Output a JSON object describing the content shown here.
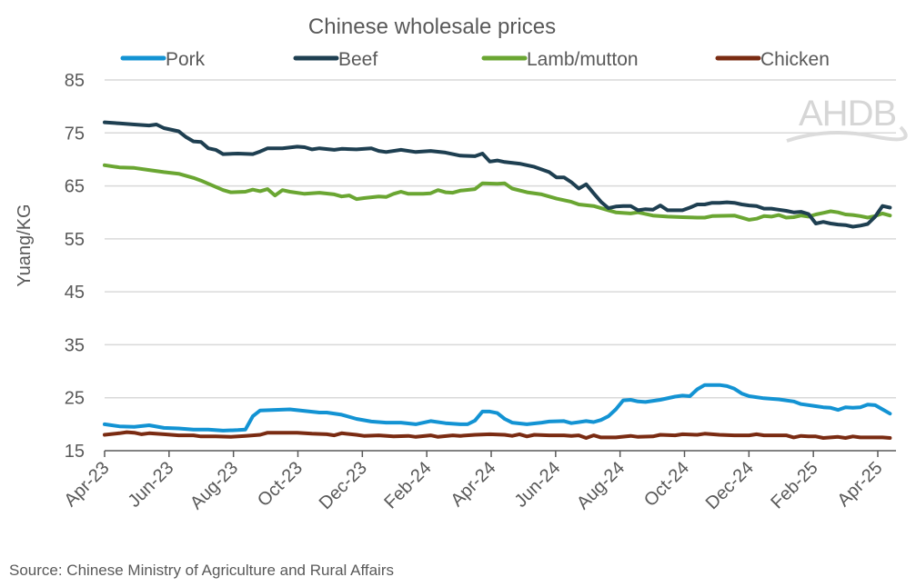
{
  "chart_data": {
    "type": "line",
    "title": "Chinese wholesale prices",
    "ylabel": "Yuang/KG",
    "xlabel": "",
    "ylim": [
      15,
      85
    ],
    "yticks": [
      15,
      25,
      35,
      45,
      55,
      65,
      75,
      85
    ],
    "grid": true,
    "legend_position": "top",
    "x_unit": "weeks since Apr-23",
    "x_range": [
      0,
      106.5
    ],
    "xtick_labels": [
      "Apr-23",
      "Jun-23",
      "Aug-23",
      "Oct-23",
      "Dec-23",
      "Feb-24",
      "Apr-24",
      "Jun-24",
      "Aug-24",
      "Oct-24",
      "Dec-24",
      "Feb-25",
      "Apr-25"
    ],
    "xtick_months_from_start": [
      0,
      2,
      4,
      6,
      8,
      10,
      12,
      14,
      16,
      18,
      20,
      22,
      24
    ],
    "series": [
      {
        "name": "Pork",
        "color": "#1393d3",
        "points": [
          [
            0,
            20.0
          ],
          [
            2,
            19.6
          ],
          [
            4,
            19.5
          ],
          [
            6,
            19.8
          ],
          [
            8,
            19.3
          ],
          [
            10,
            19.2
          ],
          [
            12,
            19.0
          ],
          [
            14,
            19.0
          ],
          [
            16,
            18.8
          ],
          [
            18,
            18.9
          ],
          [
            19,
            19.0
          ],
          [
            20,
            21.5
          ],
          [
            21,
            22.6
          ],
          [
            23,
            22.7
          ],
          [
            25,
            22.8
          ],
          [
            27,
            22.5
          ],
          [
            29,
            22.2
          ],
          [
            30,
            22.2
          ],
          [
            32,
            21.8
          ],
          [
            34,
            21.0
          ],
          [
            36,
            20.5
          ],
          [
            38,
            20.3
          ],
          [
            40,
            20.3
          ],
          [
            42,
            20.0
          ],
          [
            44,
            20.6
          ],
          [
            46,
            20.2
          ],
          [
            48,
            20.0
          ],
          [
            49,
            20.0
          ],
          [
            50,
            20.7
          ],
          [
            51,
            22.4
          ],
          [
            52,
            22.4
          ],
          [
            53,
            22.1
          ],
          [
            54,
            21.0
          ],
          [
            55,
            20.3
          ],
          [
            57,
            20.0
          ],
          [
            59,
            20.3
          ],
          [
            60,
            20.5
          ],
          [
            62,
            20.6
          ],
          [
            63,
            20.2
          ],
          [
            65,
            20.6
          ],
          [
            66,
            20.4
          ],
          [
            67,
            20.8
          ],
          [
            68,
            21.5
          ],
          [
            69,
            22.8
          ],
          [
            70,
            24.5
          ],
          [
            71,
            24.6
          ],
          [
            72,
            24.3
          ],
          [
            73,
            24.2
          ],
          [
            75,
            24.6
          ],
          [
            77,
            25.2
          ],
          [
            78,
            25.4
          ],
          [
            79,
            25.3
          ],
          [
            80,
            26.6
          ],
          [
            81,
            27.4
          ],
          [
            83,
            27.4
          ],
          [
            84,
            27.2
          ],
          [
            85,
            26.7
          ],
          [
            86,
            25.8
          ],
          [
            87,
            25.3
          ],
          [
            89,
            24.9
          ],
          [
            91,
            24.7
          ],
          [
            93,
            24.3
          ],
          [
            94,
            23.8
          ],
          [
            96,
            23.4
          ],
          [
            97,
            23.2
          ],
          [
            98,
            23.1
          ],
          [
            99,
            22.7
          ],
          [
            100,
            23.2
          ],
          [
            101,
            23.1
          ],
          [
            102,
            23.2
          ],
          [
            103,
            23.7
          ],
          [
            104,
            23.6
          ],
          [
            105,
            22.8
          ],
          [
            106,
            22.0
          ]
        ]
      },
      {
        "name": "Beef",
        "color": "#1e3f51",
        "points": [
          [
            0,
            77.0
          ],
          [
            2,
            76.8
          ],
          [
            4,
            76.6
          ],
          [
            6,
            76.4
          ],
          [
            7,
            76.6
          ],
          [
            8,
            75.9
          ],
          [
            10,
            75.3
          ],
          [
            11,
            74.2
          ],
          [
            12,
            73.4
          ],
          [
            13,
            73.3
          ],
          [
            14,
            72.1
          ],
          [
            15,
            71.8
          ],
          [
            16,
            71.0
          ],
          [
            18,
            71.1
          ],
          [
            20,
            71.0
          ],
          [
            21,
            71.5
          ],
          [
            22,
            72.1
          ],
          [
            24,
            72.1
          ],
          [
            26,
            72.4
          ],
          [
            27,
            72.3
          ],
          [
            28,
            71.9
          ],
          [
            29,
            72.1
          ],
          [
            31,
            71.8
          ],
          [
            32,
            72.0
          ],
          [
            34,
            71.9
          ],
          [
            36,
            72.1
          ],
          [
            37,
            71.6
          ],
          [
            38,
            71.4
          ],
          [
            40,
            71.8
          ],
          [
            42,
            71.4
          ],
          [
            44,
            71.6
          ],
          [
            46,
            71.3
          ],
          [
            48,
            70.7
          ],
          [
            50,
            70.6
          ],
          [
            51,
            71.1
          ],
          [
            52,
            69.6
          ],
          [
            53,
            69.8
          ],
          [
            54,
            69.5
          ],
          [
            56,
            69.2
          ],
          [
            58,
            68.6
          ],
          [
            60,
            67.6
          ],
          [
            61,
            66.6
          ],
          [
            62,
            66.6
          ],
          [
            63,
            65.7
          ],
          [
            64,
            64.5
          ],
          [
            65,
            65.3
          ],
          [
            66,
            63.6
          ],
          [
            67,
            62.0
          ],
          [
            68,
            60.8
          ],
          [
            69,
            61.1
          ],
          [
            70,
            61.2
          ],
          [
            71,
            61.2
          ],
          [
            72,
            60.4
          ],
          [
            73,
            60.6
          ],
          [
            74,
            60.5
          ],
          [
            75,
            61.3
          ],
          [
            76,
            60.4
          ],
          [
            77,
            60.4
          ],
          [
            78,
            60.4
          ],
          [
            79,
            60.9
          ],
          [
            80,
            61.5
          ],
          [
            81,
            61.5
          ],
          [
            82,
            61.8
          ],
          [
            83,
            61.8
          ],
          [
            84,
            61.9
          ],
          [
            85,
            61.8
          ],
          [
            86,
            61.5
          ],
          [
            87,
            61.3
          ],
          [
            88,
            61.2
          ],
          [
            89,
            60.7
          ],
          [
            90,
            60.7
          ],
          [
            91,
            60.5
          ],
          [
            92,
            60.3
          ],
          [
            93,
            60.0
          ],
          [
            94,
            60.1
          ],
          [
            95,
            59.7
          ],
          [
            96,
            57.9
          ],
          [
            97,
            58.2
          ],
          [
            98,
            57.9
          ],
          [
            99,
            57.7
          ],
          [
            100,
            57.6
          ],
          [
            101,
            57.3
          ],
          [
            102,
            57.5
          ],
          [
            103,
            57.8
          ],
          [
            104,
            59.2
          ],
          [
            105,
            61.2
          ],
          [
            106,
            60.9
          ]
        ]
      },
      {
        "name": "Lamb/mutton",
        "color": "#6aa632",
        "points": [
          [
            0,
            68.9
          ],
          [
            2,
            68.5
          ],
          [
            4,
            68.4
          ],
          [
            6,
            68.0
          ],
          [
            8,
            67.6
          ],
          [
            10,
            67.3
          ],
          [
            12,
            66.5
          ],
          [
            13,
            66.0
          ],
          [
            14,
            65.4
          ],
          [
            16,
            64.2
          ],
          [
            17,
            63.8
          ],
          [
            19,
            63.9
          ],
          [
            20,
            64.3
          ],
          [
            21,
            64.0
          ],
          [
            22,
            64.4
          ],
          [
            23,
            63.2
          ],
          [
            24,
            64.2
          ],
          [
            25,
            63.9
          ],
          [
            27,
            63.5
          ],
          [
            29,
            63.7
          ],
          [
            31,
            63.4
          ],
          [
            32,
            63.0
          ],
          [
            33,
            63.2
          ],
          [
            34,
            62.5
          ],
          [
            35,
            62.7
          ],
          [
            37,
            63.0
          ],
          [
            38,
            62.9
          ],
          [
            39,
            63.5
          ],
          [
            40,
            63.9
          ],
          [
            41,
            63.5
          ],
          [
            43,
            63.5
          ],
          [
            44,
            63.6
          ],
          [
            45,
            64.2
          ],
          [
            46,
            63.8
          ],
          [
            47,
            63.7
          ],
          [
            48,
            64.1
          ],
          [
            50,
            64.4
          ],
          [
            51,
            65.5
          ],
          [
            53,
            65.4
          ],
          [
            54,
            65.5
          ],
          [
            55,
            64.5
          ],
          [
            57,
            63.8
          ],
          [
            59,
            63.4
          ],
          [
            61,
            62.6
          ],
          [
            63,
            62.0
          ],
          [
            64,
            61.5
          ],
          [
            66,
            61.2
          ],
          [
            68,
            60.4
          ],
          [
            69,
            60.0
          ],
          [
            71,
            59.8
          ],
          [
            72,
            60.0
          ],
          [
            74,
            59.4
          ],
          [
            76,
            59.2
          ],
          [
            78,
            59.1
          ],
          [
            80,
            59.0
          ],
          [
            81,
            59.0
          ],
          [
            82,
            59.3
          ],
          [
            85,
            59.4
          ],
          [
            87,
            58.6
          ],
          [
            88,
            58.8
          ],
          [
            89,
            59.3
          ],
          [
            90,
            59.2
          ],
          [
            91,
            59.5
          ],
          [
            92,
            59.0
          ],
          [
            93,
            59.1
          ],
          [
            94,
            59.4
          ],
          [
            95,
            59.2
          ],
          [
            96,
            59.6
          ],
          [
            97,
            59.9
          ],
          [
            98,
            60.2
          ],
          [
            99,
            60.0
          ],
          [
            100,
            59.6
          ],
          [
            101,
            59.5
          ],
          [
            102,
            59.3
          ],
          [
            103,
            59.0
          ],
          [
            104,
            59.3
          ],
          [
            105,
            59.8
          ],
          [
            106,
            59.4
          ]
        ]
      },
      {
        "name": "Chicken",
        "color": "#7a2b12",
        "points": [
          [
            0,
            18.0
          ],
          [
            2,
            18.3
          ],
          [
            3,
            18.5
          ],
          [
            4,
            18.4
          ],
          [
            5,
            18.1
          ],
          [
            6,
            18.3
          ],
          [
            8,
            18.1
          ],
          [
            10,
            17.9
          ],
          [
            12,
            17.9
          ],
          [
            13,
            17.7
          ],
          [
            15,
            17.7
          ],
          [
            17,
            17.6
          ],
          [
            19,
            17.8
          ],
          [
            21,
            18.0
          ],
          [
            22,
            18.4
          ],
          [
            24,
            18.4
          ],
          [
            26,
            18.4
          ],
          [
            28,
            18.2
          ],
          [
            30,
            18.1
          ],
          [
            31,
            17.9
          ],
          [
            32,
            18.3
          ],
          [
            34,
            18.0
          ],
          [
            35,
            17.8
          ],
          [
            37,
            17.9
          ],
          [
            39,
            17.7
          ],
          [
            41,
            17.8
          ],
          [
            42,
            17.6
          ],
          [
            44,
            17.9
          ],
          [
            45,
            17.6
          ],
          [
            47,
            17.9
          ],
          [
            48,
            17.8
          ],
          [
            50,
            18.0
          ],
          [
            52,
            18.1
          ],
          [
            54,
            18.0
          ],
          [
            55,
            17.8
          ],
          [
            56,
            18.1
          ],
          [
            57,
            17.7
          ],
          [
            58,
            18.0
          ],
          [
            60,
            17.9
          ],
          [
            62,
            17.9
          ],
          [
            63,
            17.8
          ],
          [
            64,
            17.9
          ],
          [
            65,
            17.4
          ],
          [
            66,
            17.9
          ],
          [
            67,
            17.5
          ],
          [
            69,
            17.5
          ],
          [
            71,
            17.8
          ],
          [
            72,
            17.6
          ],
          [
            74,
            17.7
          ],
          [
            75,
            18.0
          ],
          [
            77,
            17.9
          ],
          [
            78,
            18.1
          ],
          [
            80,
            18.0
          ],
          [
            81,
            18.2
          ],
          [
            83,
            18.0
          ],
          [
            85,
            17.9
          ],
          [
            87,
            17.9
          ],
          [
            88,
            18.1
          ],
          [
            89,
            17.9
          ],
          [
            90,
            17.9
          ],
          [
            92,
            17.9
          ],
          [
            93,
            17.5
          ],
          [
            94,
            17.8
          ],
          [
            95,
            17.7
          ],
          [
            96,
            17.7
          ],
          [
            97,
            17.4
          ],
          [
            99,
            17.6
          ],
          [
            100,
            17.4
          ],
          [
            101,
            17.7
          ],
          [
            102,
            17.5
          ],
          [
            103,
            17.5
          ],
          [
            104,
            17.5
          ],
          [
            105,
            17.5
          ],
          [
            106,
            17.4
          ]
        ]
      }
    ],
    "source": "Source: Chinese Ministry of Agriculture and Rural Affairs",
    "watermark": "AHDB"
  }
}
